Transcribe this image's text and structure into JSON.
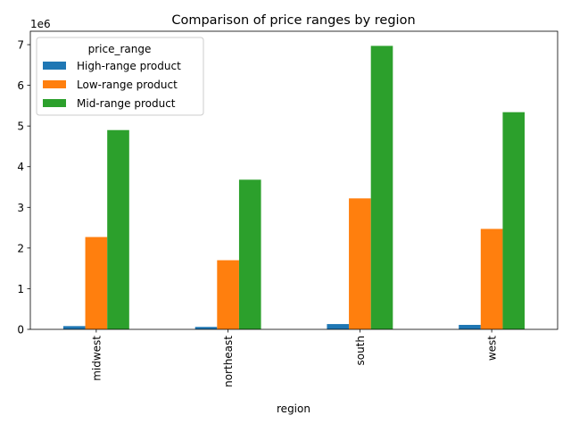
{
  "chart_data": {
    "type": "bar",
    "title": "Comparison of price ranges by region",
    "xlabel": "region",
    "ylabel": "",
    "y_offset_label": "1e6",
    "categories": [
      "midwest",
      "northeast",
      "south",
      "west"
    ],
    "series": [
      {
        "name": "High-range product",
        "color": "#1f77b4",
        "values": [
          80000,
          60000,
          130000,
          110000
        ]
      },
      {
        "name": "Low-range product",
        "color": "#ff7f0e",
        "values": [
          2270000,
          1700000,
          3220000,
          2470000
        ]
      },
      {
        "name": "Mid-range product",
        "color": "#2ca02c",
        "values": [
          4900000,
          3680000,
          6970000,
          5340000
        ]
      }
    ],
    "ylim": [
      0,
      7330000
    ],
    "yticks": [
      0,
      1,
      2,
      3,
      4,
      5,
      6,
      7
    ],
    "grid": false,
    "legend": {
      "title": "price_range",
      "placement": "top-left"
    }
  }
}
